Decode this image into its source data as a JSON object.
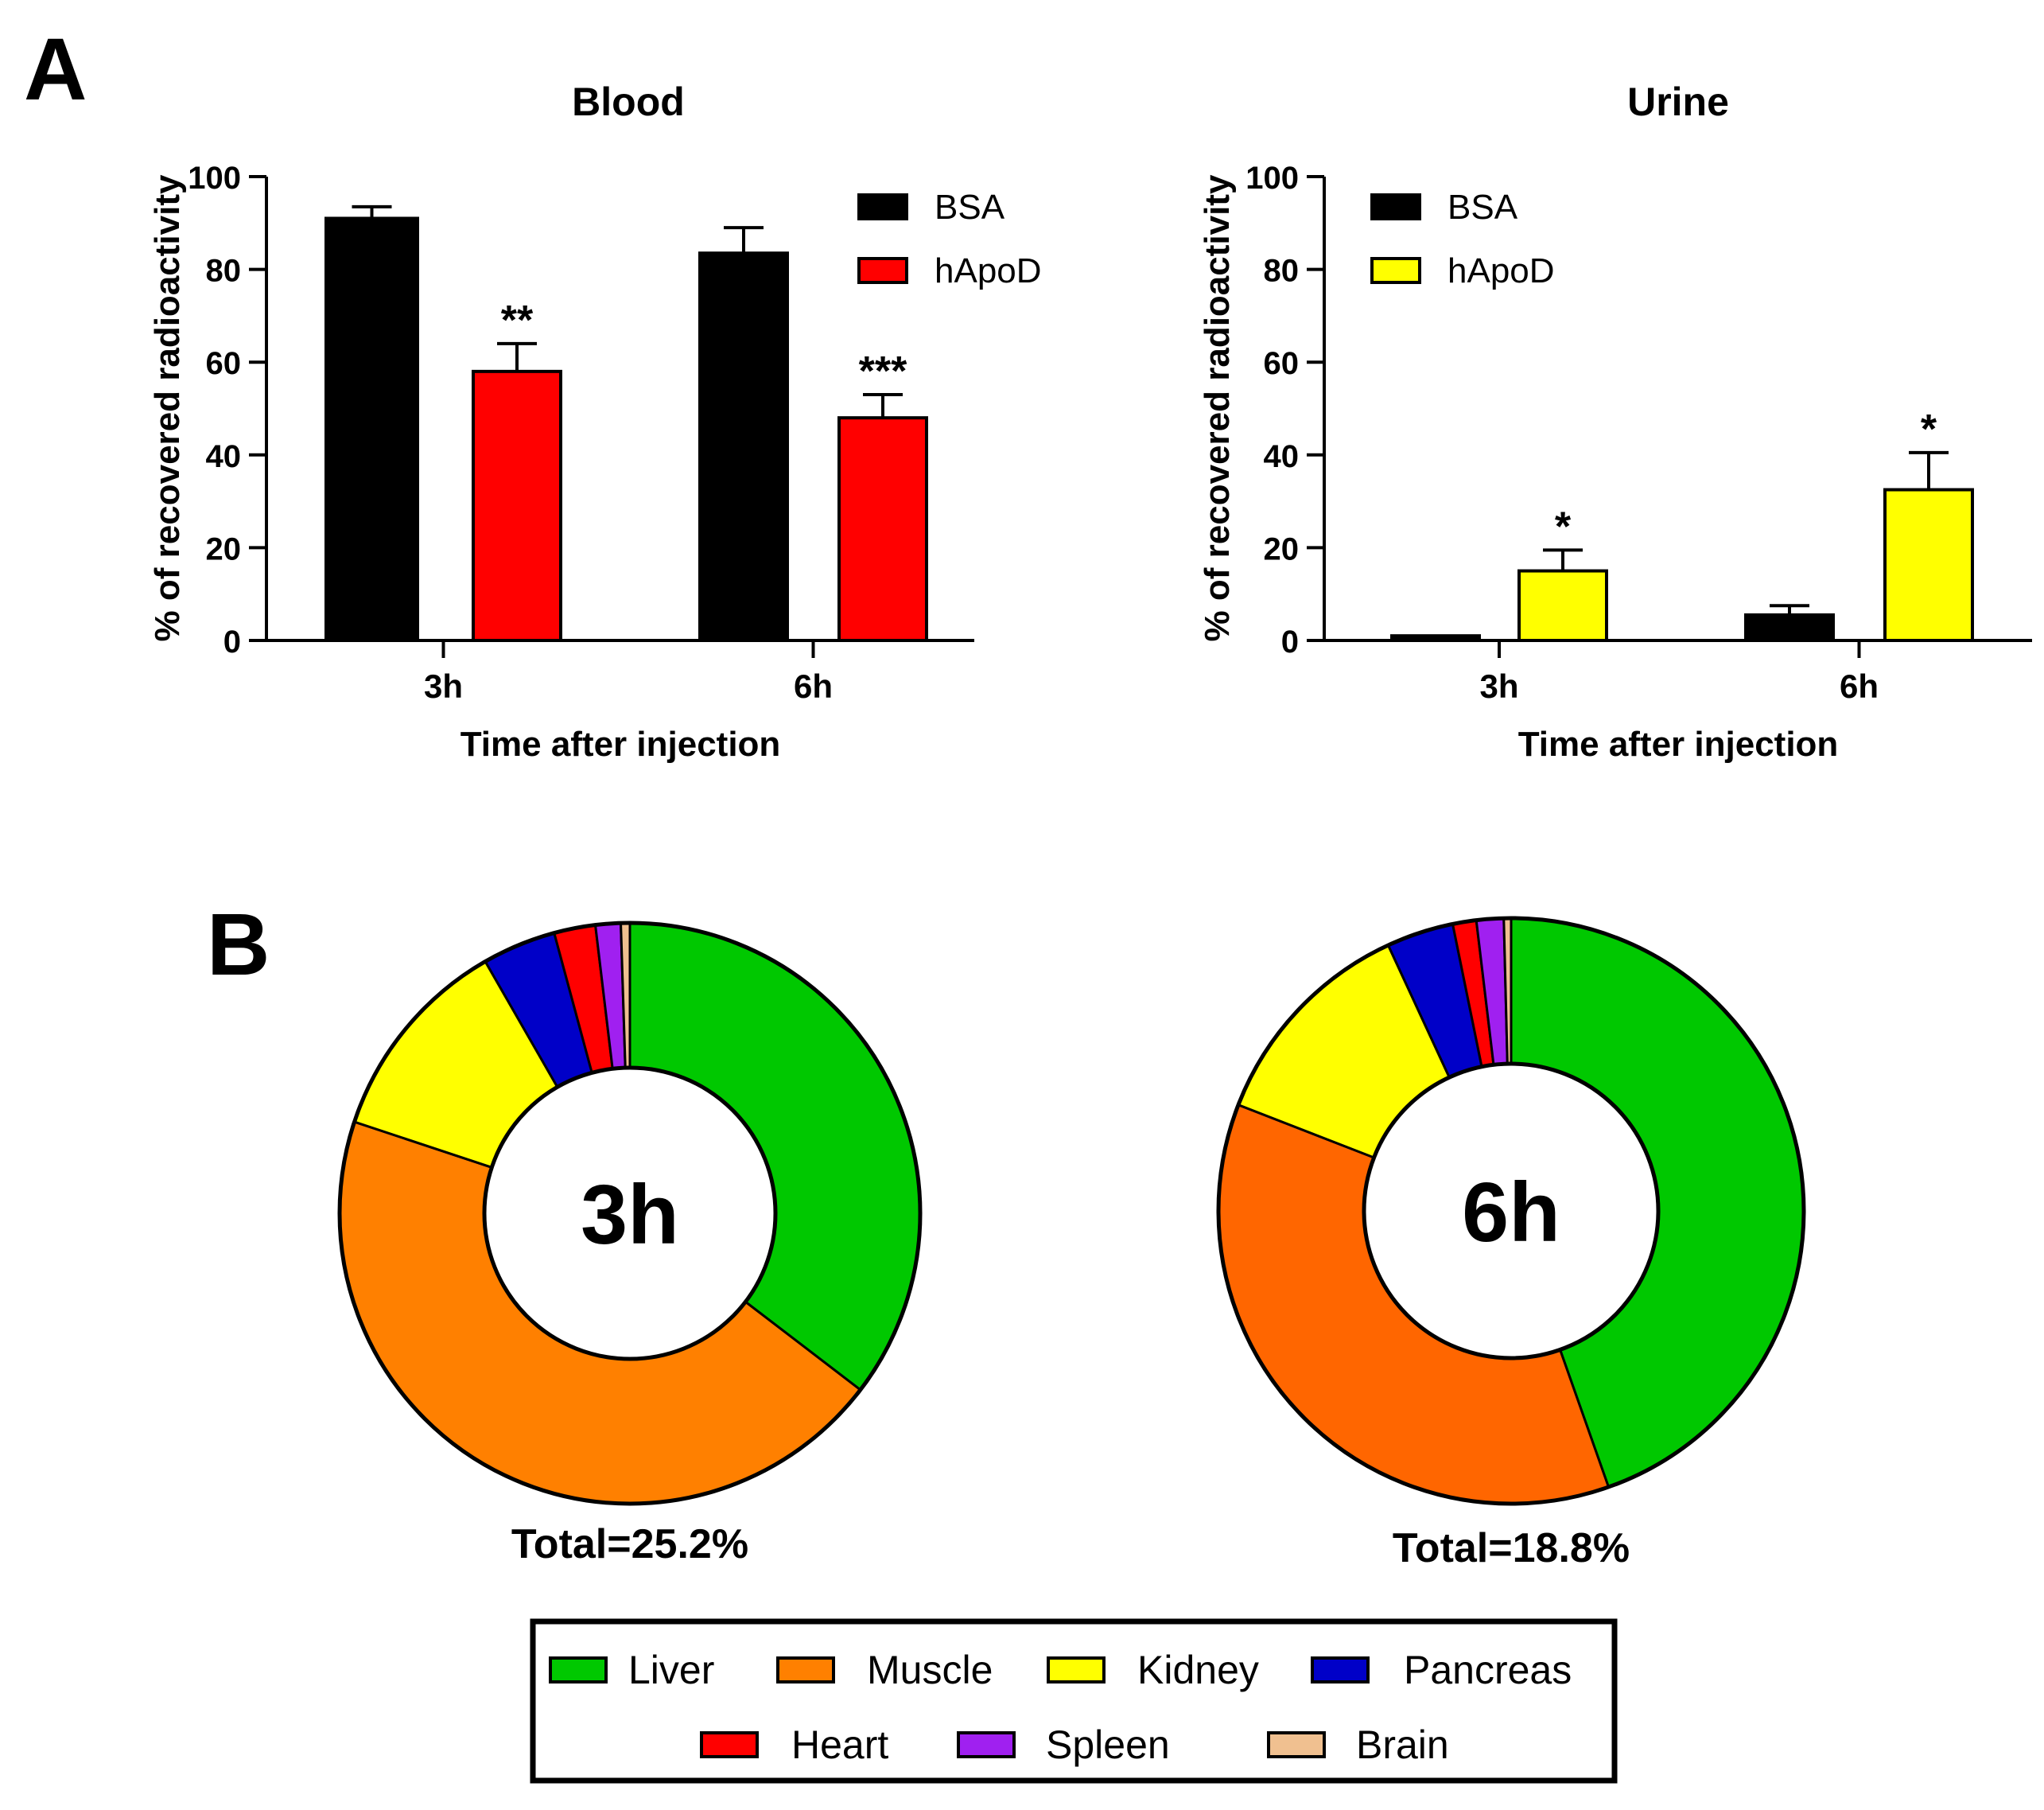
{
  "panel_labels": {
    "a": "A",
    "b": "B"
  },
  "chart_data": [
    {
      "id": "blood",
      "type": "bar",
      "title": "Blood",
      "xlabel": "Time after injection",
      "ylabel": "% of recovered radioactivity",
      "ylim": [
        0,
        100
      ],
      "yticks": [
        0,
        20,
        40,
        60,
        80,
        100
      ],
      "categories": [
        "3h",
        "6h"
      ],
      "series": [
        {
          "name": "BSA",
          "color": "#000000",
          "values": [
            91,
            83.5
          ],
          "errors": [
            2.5,
            5.5
          ]
        },
        {
          "name": "hApoD",
          "color": "#ff0000",
          "values": [
            58,
            48
          ],
          "errors": [
            6,
            5
          ]
        }
      ],
      "annotations": [
        {
          "series": "hApoD",
          "category": "3h",
          "text": "**"
        },
        {
          "series": "hApoD",
          "category": "6h",
          "text": "***"
        }
      ],
      "legend": "top-right"
    },
    {
      "id": "urine",
      "type": "bar",
      "title": "Urine",
      "xlabel": "Time after injection",
      "ylabel": "% of recovered radioactivity",
      "ylim": [
        0,
        100
      ],
      "yticks": [
        0,
        20,
        40,
        60,
        80,
        100
      ],
      "categories": [
        "3h",
        "6h"
      ],
      "series": [
        {
          "name": "BSA",
          "color": "#000000",
          "values": [
            1,
            5.5
          ],
          "errors": [
            0,
            2
          ]
        },
        {
          "name": "hApoD",
          "color": "#ffff00",
          "values": [
            15,
            32.5
          ],
          "errors": [
            4.5,
            8
          ]
        }
      ],
      "annotations": [
        {
          "series": "hApoD",
          "category": "3h",
          "text": "*"
        },
        {
          "series": "hApoD",
          "category": "6h",
          "text": "*"
        }
      ],
      "legend": "top-left"
    },
    {
      "id": "donut-3h",
      "type": "pie",
      "center_label": "3h",
      "total_label": "Total=25.2%",
      "labels": [
        "Liver",
        "Muscle",
        "Kidney",
        "Pancreas",
        "Heart",
        "Spleen",
        "Brain"
      ],
      "values": [
        35.4,
        44.7,
        11.6,
        4.1,
        2.3,
        1.4,
        0.5
      ],
      "colors": [
        "#00c800",
        "#ff8000",
        "#ffff00",
        "#0000c8",
        "#ff0000",
        "#a020f0",
        "#f0c090"
      ]
    },
    {
      "id": "donut-6h",
      "type": "pie",
      "center_label": "6h",
      "total_label": "Total=18.8%",
      "labels": [
        "Liver",
        "Muscle",
        "Kidney",
        "Pancreas",
        "Heart",
        "Spleen",
        "Brain"
      ],
      "values": [
        44.6,
        36.3,
        12.2,
        3.7,
        1.3,
        1.5,
        0.4
      ],
      "colors": [
        "#00c800",
        "#ff6600",
        "#ffff00",
        "#0000c8",
        "#ff0000",
        "#a020f0",
        "#f0c090"
      ]
    }
  ],
  "organ_legend": {
    "items": [
      {
        "label": "Liver",
        "color": "#00c800"
      },
      {
        "label": "Muscle",
        "color": "#ff8000"
      },
      {
        "label": "Kidney",
        "color": "#ffff00"
      },
      {
        "label": "Pancreas",
        "color": "#0000c8"
      },
      {
        "label": "Heart",
        "color": "#ff0000"
      },
      {
        "label": "Spleen",
        "color": "#a020f0"
      },
      {
        "label": "Brain",
        "color": "#f0c090"
      }
    ]
  }
}
